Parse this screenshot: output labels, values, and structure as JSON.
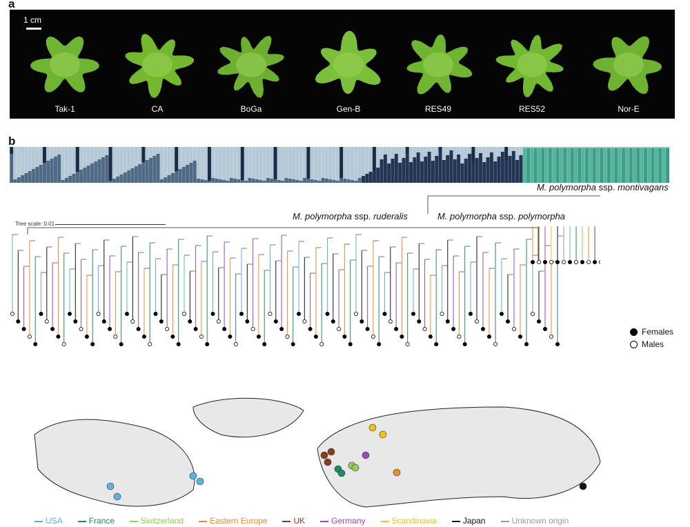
{
  "panel_a": {
    "label": "a",
    "scale_bar": "1 cm",
    "plants": [
      {
        "name": "Tak-1"
      },
      {
        "name": "CA"
      },
      {
        "name": "BoGa"
      },
      {
        "name": "Gen-B"
      },
      {
        "name": "RES49"
      },
      {
        "name": "RES52"
      },
      {
        "name": "Nor-E"
      }
    ]
  },
  "panel_b": {
    "label": "b",
    "tree_scale": "Tree scale: 0.01",
    "subspecies": {
      "ruderalis_genus": "M. polymorpha",
      "ruderalis_ssp": "ssp.",
      "ruderalis_name": "ruderalis",
      "polymorpha_genus": "M. polymorpha",
      "polymorpha_ssp": "ssp.",
      "polymorpha_name": "polymorpha",
      "montivagans_genus": "M. polymorpha",
      "montivagans_ssp": "ssp.",
      "montivagans_name": "montivagans"
    },
    "sex_legend": {
      "females": "Females",
      "males": "Males"
    },
    "region_legend": [
      {
        "name": "USA",
        "color": "#5bb3de"
      },
      {
        "name": "France",
        "color": "#1f8a6a"
      },
      {
        "name": "Switzerland",
        "color": "#8fd14f"
      },
      {
        "name": "Eastern Europe",
        "color": "#f08a2c"
      },
      {
        "name": "UK",
        "color": "#8b3a1f"
      },
      {
        "name": "Germany",
        "color": "#9a47b8"
      },
      {
        "name": "Scandinavia",
        "color": "#f2c21b"
      },
      {
        "name": "Japan",
        "color": "#111111"
      },
      {
        "name": "Unknown origin",
        "color": "#9a9a9a"
      }
    ]
  }
}
